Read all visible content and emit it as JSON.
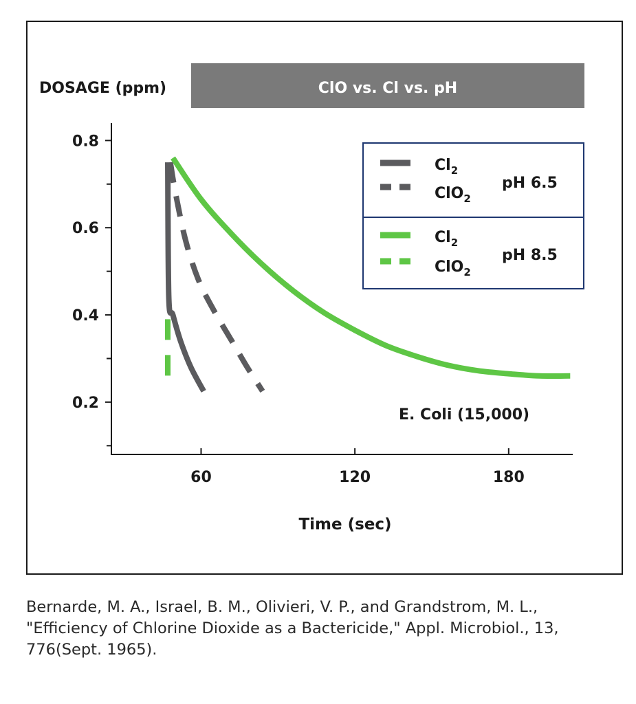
{
  "chart_data": {
    "type": "line",
    "title": "ClO vs. Cl vs. pH",
    "ylabel": "DOSAGE (ppm)",
    "xlabel": "Time (sec)",
    "annotation": "E. Coli (15,000)",
    "xlim": [
      25,
      205
    ],
    "ylim": [
      0.08,
      0.84
    ],
    "x_ticks": [
      60,
      120,
      180
    ],
    "x_tick_labels": [
      "60",
      "120",
      "180"
    ],
    "y_ticks": [
      0.2,
      0.4,
      0.6,
      0.8
    ],
    "y_tick_labels": [
      "0.2",
      "0.4",
      "0.6",
      "0.8"
    ],
    "y_minor_ticks": [
      0.1,
      0.3,
      0.5,
      0.7
    ],
    "legend": {
      "groups": [
        {
          "label": "pH 6.5",
          "color": "#5b5b5e",
          "entries": [
            {
              "base": "Cl",
              "sub": "2",
              "style": "solid"
            },
            {
              "base": "ClO",
              "sub": "2",
              "style": "dashed"
            }
          ]
        },
        {
          "label": "pH 8.5",
          "color": "#5ec645",
          "entries": [
            {
              "base": "Cl",
              "sub": "2",
              "style": "solid"
            },
            {
              "base": "ClO",
              "sub": "2",
              "style": "dashed"
            }
          ]
        }
      ]
    },
    "series": [
      {
        "group": "pH 6.5",
        "style": "solid",
        "color": "#5b5b5e",
        "points": [
          [
            47,
            0.75
          ],
          [
            47.4,
            0.44
          ],
          [
            49,
            0.4
          ],
          [
            52,
            0.34
          ],
          [
            56,
            0.28
          ],
          [
            61,
            0.225
          ]
        ]
      },
      {
        "group": "pH 6.5",
        "style": "dashed",
        "color": "#5b5b5e",
        "points": [
          [
            48,
            0.75
          ],
          [
            50,
            0.68
          ],
          [
            54,
            0.57
          ],
          [
            59,
            0.48
          ],
          [
            65,
            0.41
          ],
          [
            72,
            0.34
          ],
          [
            78,
            0.28
          ],
          [
            84,
            0.225
          ]
        ]
      },
      {
        "group": "pH 8.5",
        "style": "solid",
        "color": "#5ec645",
        "points": [
          [
            49,
            0.76
          ],
          [
            60,
            0.665
          ],
          [
            72,
            0.585
          ],
          [
            84,
            0.515
          ],
          [
            96,
            0.455
          ],
          [
            108,
            0.405
          ],
          [
            120,
            0.365
          ],
          [
            132,
            0.33
          ],
          [
            144,
            0.305
          ],
          [
            156,
            0.285
          ],
          [
            168,
            0.272
          ],
          [
            180,
            0.265
          ],
          [
            192,
            0.26
          ],
          [
            204,
            0.26
          ]
        ]
      },
      {
        "group": "pH 8.5",
        "style": "dashed",
        "color": "#5ec645",
        "points": [
          [
            47,
            0.39
          ],
          [
            47,
            0.26
          ]
        ]
      }
    ]
  },
  "caption": {
    "line1": "Bernarde, M. A., Israel, B. M., Olivieri, V. P., and Grandstrom, M. L.,",
    "line2": "\"Efficiency of Chlorine Dioxide as a Bactericide,\" Appl. Microbiol., 13,",
    "line3": "776(Sept. 1965)."
  }
}
